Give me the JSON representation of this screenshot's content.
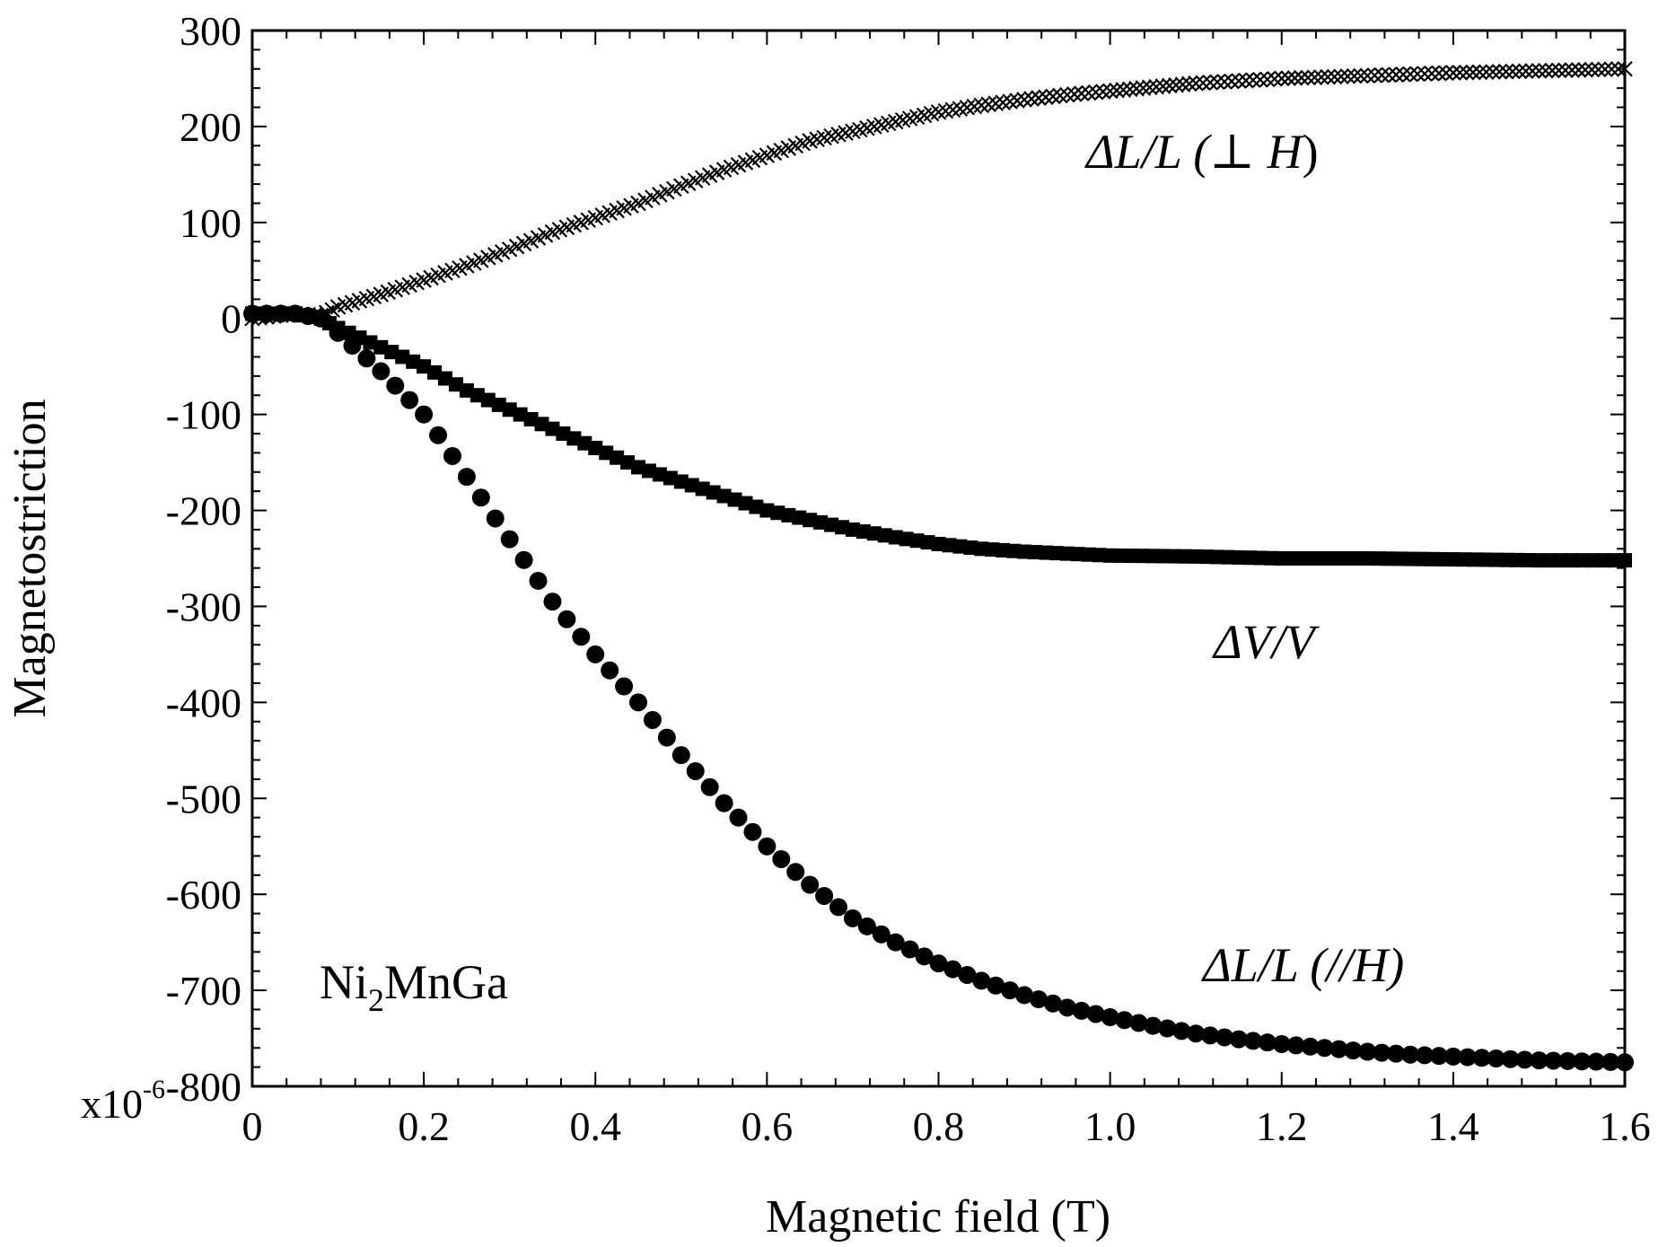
{
  "chart_data": {
    "type": "scatter",
    "title": "",
    "xlabel": "Magnetic field (T)",
    "ylabel": "Magnetostriction",
    "xlim": [
      0,
      1.6
    ],
    "ylim": [
      -800,
      300
    ],
    "y_multiplier_label": "x10",
    "y_multiplier_exp": "-6",
    "x_ticks": [
      {
        "v": 0,
        "label": "0"
      },
      {
        "v": 0.2,
        "label": "0.2"
      },
      {
        "v": 0.4,
        "label": "0.4"
      },
      {
        "v": 0.6,
        "label": "0.6"
      },
      {
        "v": 0.8,
        "label": "0.8"
      },
      {
        "v": 1.0,
        "label": "1.0"
      },
      {
        "v": 1.2,
        "label": "1.2"
      },
      {
        "v": 1.4,
        "label": "1.4"
      },
      {
        "v": 1.6,
        "label": "1.6"
      }
    ],
    "y_ticks": [
      {
        "v": 300,
        "label": "300"
      },
      {
        "v": 200,
        "label": "200"
      },
      {
        "v": 100,
        "label": "100"
      },
      {
        "v": 0,
        "label": "0"
      },
      {
        "v": -100,
        "label": "-100"
      },
      {
        "v": -200,
        "label": "-200"
      },
      {
        "v": -300,
        "label": "-300"
      },
      {
        "v": -400,
        "label": "-400"
      },
      {
        "v": -500,
        "label": "-500"
      },
      {
        "v": -600,
        "label": "-600"
      },
      {
        "v": -700,
        "label": "-700"
      },
      {
        "v": -800,
        "label": "-800"
      }
    ],
    "series": [
      {
        "name": "ΔL/L (⊥ H)",
        "marker": "cross",
        "x": [
          0,
          0.05,
          0.08,
          0.1,
          0.15,
          0.2,
          0.25,
          0.3,
          0.35,
          0.4,
          0.45,
          0.5,
          0.55,
          0.6,
          0.65,
          0.7,
          0.75,
          0.8,
          0.85,
          0.9,
          0.95,
          1.0,
          1.1,
          1.2,
          1.3,
          1.4,
          1.5,
          1.6
        ],
        "y": [
          0,
          5,
          3,
          12,
          25,
          40,
          55,
          72,
          90,
          105,
          120,
          138,
          155,
          170,
          185,
          195,
          205,
          215,
          222,
          228,
          233,
          237,
          245,
          250,
          253,
          256,
          258,
          260
        ]
      },
      {
        "name": "ΔV/V",
        "marker": "square",
        "x": [
          0,
          0.05,
          0.08,
          0.1,
          0.15,
          0.2,
          0.25,
          0.3,
          0.35,
          0.4,
          0.45,
          0.5,
          0.55,
          0.6,
          0.65,
          0.7,
          0.75,
          0.8,
          0.85,
          0.9,
          0.95,
          1.0,
          1.1,
          1.2,
          1.3,
          1.4,
          1.5,
          1.6
        ],
        "y": [
          5,
          5,
          0,
          -10,
          -30,
          -50,
          -75,
          -95,
          -115,
          -135,
          -155,
          -170,
          -185,
          -200,
          -210,
          -220,
          -228,
          -235,
          -240,
          -243,
          -245,
          -247,
          -248,
          -250,
          -250,
          -251,
          -252,
          -252
        ]
      },
      {
        "name": "ΔL/L (//H)",
        "marker": "circle",
        "x": [
          0,
          0.05,
          0.08,
          0.1,
          0.15,
          0.2,
          0.25,
          0.3,
          0.35,
          0.4,
          0.45,
          0.5,
          0.55,
          0.6,
          0.65,
          0.7,
          0.75,
          0.8,
          0.85,
          0.9,
          0.95,
          1.0,
          1.05,
          1.1,
          1.15,
          1.2,
          1.25,
          1.3,
          1.35,
          1.4,
          1.45,
          1.5,
          1.55,
          1.6
        ],
        "y": [
          5,
          5,
          0,
          -15,
          -55,
          -100,
          -165,
          -230,
          -295,
          -350,
          -400,
          -455,
          -505,
          -550,
          -590,
          -625,
          -650,
          -672,
          -690,
          -705,
          -718,
          -728,
          -737,
          -745,
          -751,
          -756,
          -760,
          -764,
          -767,
          -769,
          -771,
          -773,
          -774,
          -775
        ]
      }
    ],
    "annotations": {
      "perp": {
        "pre": "ΔL/L (",
        "perp": "⊥",
        "h": " H",
        "post": ")"
      },
      "vol": "ΔV/V",
      "par": "ΔL/L (//H)",
      "sample_main": "Ni",
      "sample_sub": "2",
      "sample_rest": "MnGa"
    }
  }
}
